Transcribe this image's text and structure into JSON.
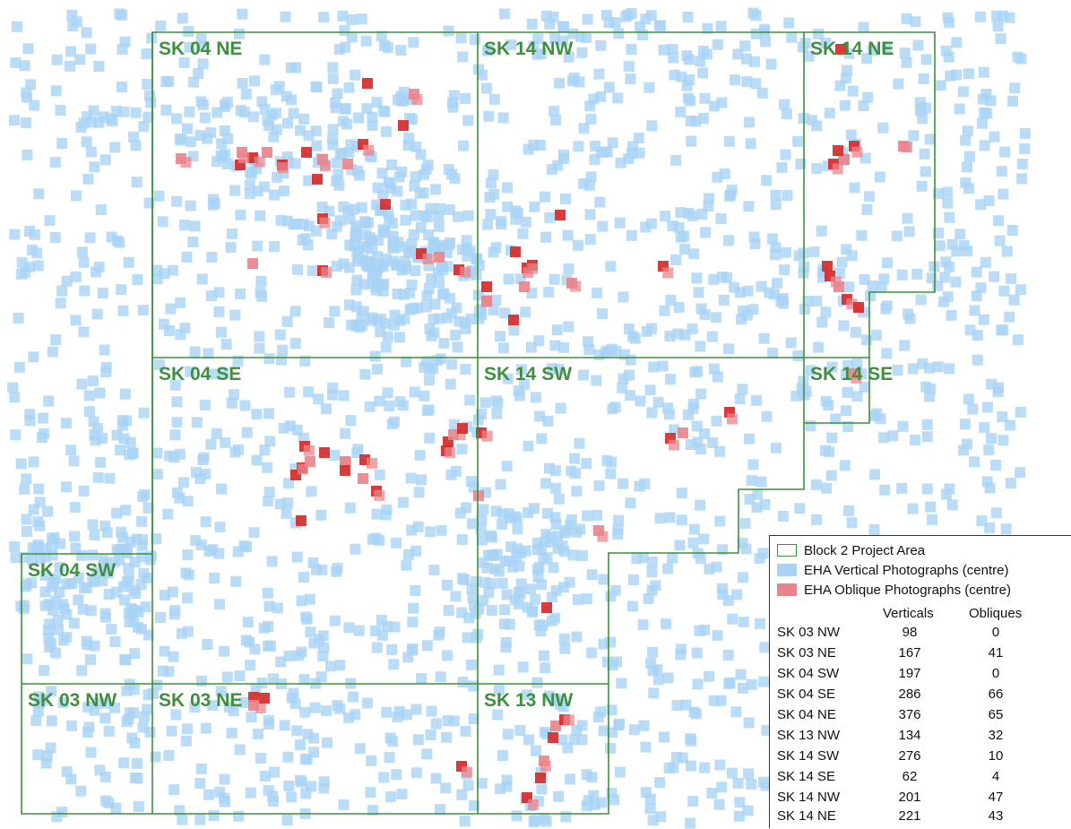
{
  "grid_labels": [
    "SK 04 NE",
    "SK 14 NW",
    "SK 14 NE",
    "SK 04 SE",
    "SK 14 SW",
    "SK 14 SE",
    "SK 04 SW",
    "SK 03 NW",
    "SK 03 NE",
    "SK 13 NW"
  ],
  "legend": {
    "items": [
      {
        "label": "Block 2 Project Area",
        "symbol": "outline",
        "color": "#3f8f3f"
      },
      {
        "label": "EHA Vertical Photographs (centre)",
        "symbol": "square",
        "color": "#a9d3f5"
      },
      {
        "label": "EHA Oblique Photographs (centre)",
        "symbol": "square",
        "color": "#e8858c"
      }
    ],
    "table": {
      "headers": [
        "Verticals",
        "Obliques"
      ],
      "rows": [
        {
          "sheet": "SK 03 NW",
          "verticals": "98",
          "obliques": "0"
        },
        {
          "sheet": "SK 03 NE",
          "verticals": "167",
          "obliques": "41"
        },
        {
          "sheet": "SK 04 SW",
          "verticals": "197",
          "obliques": "0"
        },
        {
          "sheet": "SK 04 SE",
          "verticals": "286",
          "obliques": "66"
        },
        {
          "sheet": "SK 04 NE",
          "verticals": "376",
          "obliques": "65"
        },
        {
          "sheet": "SK 13 NW",
          "verticals": "134",
          "obliques": "32"
        },
        {
          "sheet": "SK 14 SW",
          "verticals": "276",
          "obliques": "10"
        },
        {
          "sheet": "SK 14 SE",
          "verticals": "62",
          "obliques": "4"
        },
        {
          "sheet": "SK 14 NW",
          "verticals": "201",
          "obliques": "47"
        },
        {
          "sheet": "SK 14 NE",
          "verticals": "221",
          "obliques": "43"
        }
      ]
    }
  },
  "colors": {
    "boundary": "#3f8f3f",
    "vertical_point": "#a9d3f5",
    "oblique_point": "#e8858c",
    "oblique_point_dense": "#d42b2b"
  }
}
